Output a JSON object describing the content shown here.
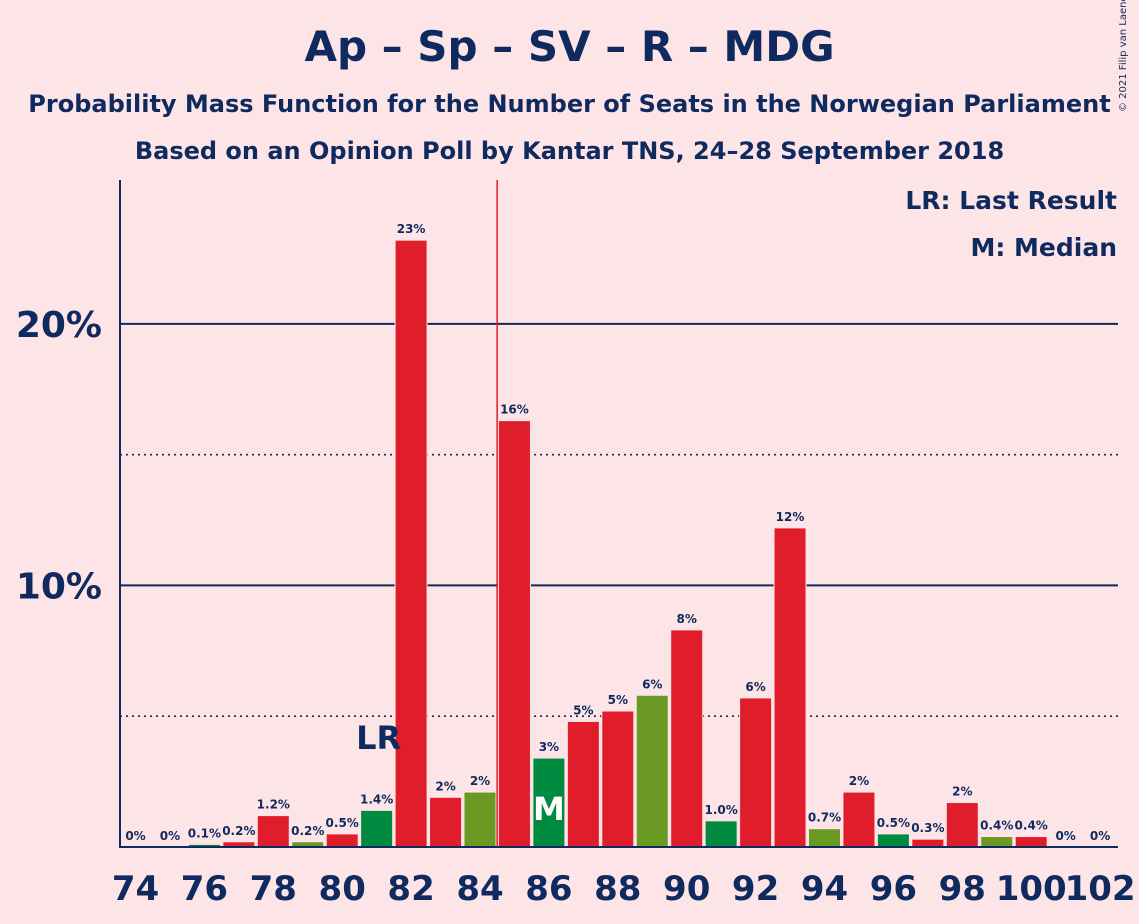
{
  "chart_data": {
    "type": "bar",
    "title": "Ap – Sp – SV – R – MDG",
    "subtitle": "Probability Mass Function for the Number of Seats in the Norwegian Parliament",
    "subtitle2": "Based on an Opinion Poll by Kantar TNS, 24–28 September 2018",
    "legend": {
      "lr": "LR: Last Result",
      "m": "M: Median"
    },
    "copyright": "© 2021 Filip van Laenen",
    "x": [
      74,
      75,
      76,
      77,
      78,
      79,
      80,
      81,
      82,
      83,
      84,
      85,
      86,
      87,
      88,
      89,
      90,
      91,
      92,
      93,
      94,
      95,
      96,
      97,
      98,
      99,
      100,
      101,
      102
    ],
    "values": [
      0,
      0,
      0.1,
      0.2,
      1.2,
      0.2,
      0.5,
      1.4,
      23.2,
      1.9,
      2.1,
      16.3,
      3.4,
      4.8,
      5.2,
      5.8,
      8.3,
      1.0,
      5.7,
      12.2,
      0.7,
      2.1,
      0.5,
      0.3,
      1.7,
      0.4,
      0.4,
      0,
      0
    ],
    "labels": [
      "0%",
      "0%",
      "0.1%",
      "0.2%",
      "1.2%",
      "0.2%",
      "0.5%",
      "1.4%",
      "23%",
      "2%",
      "2%",
      "16%",
      "3%",
      "5%",
      "5%",
      "6%",
      "8%",
      "1.0%",
      "6%",
      "12%",
      "0.7%",
      "2%",
      "0.5%",
      "0.3%",
      "2%",
      "0.4%",
      "0.4%",
      "0%",
      "0%"
    ],
    "colors": [
      "red",
      "red",
      "green",
      "red",
      "red",
      "olive",
      "red",
      "green",
      "red",
      "red",
      "olive",
      "red",
      "green",
      "red",
      "red",
      "olive",
      "red",
      "green",
      "red",
      "red",
      "olive",
      "red",
      "green",
      "red",
      "red",
      "olive",
      "red",
      "red",
      "red"
    ],
    "palette": {
      "red": "#E01E2B",
      "green": "#008A3F",
      "olive": "#6A9A24",
      "axis": "#0F2A5F",
      "last_result_line": "#E01E2B",
      "background": "#FDE4E6"
    },
    "x_tick_labels": [
      "74",
      "76",
      "78",
      "80",
      "82",
      "84",
      "86",
      "88",
      "90",
      "92",
      "94",
      "96",
      "98",
      "100",
      "102"
    ],
    "y_tick_labels": [
      "10%",
      "20%"
    ],
    "ylim": [
      0,
      25.5
    ],
    "solid_gridlines": [
      10,
      20
    ],
    "dotted_gridlines": [
      5,
      15
    ],
    "last_result": 85,
    "last_result_label": "LR",
    "last_result_label_at": 81,
    "median": 86,
    "median_label": "M"
  }
}
